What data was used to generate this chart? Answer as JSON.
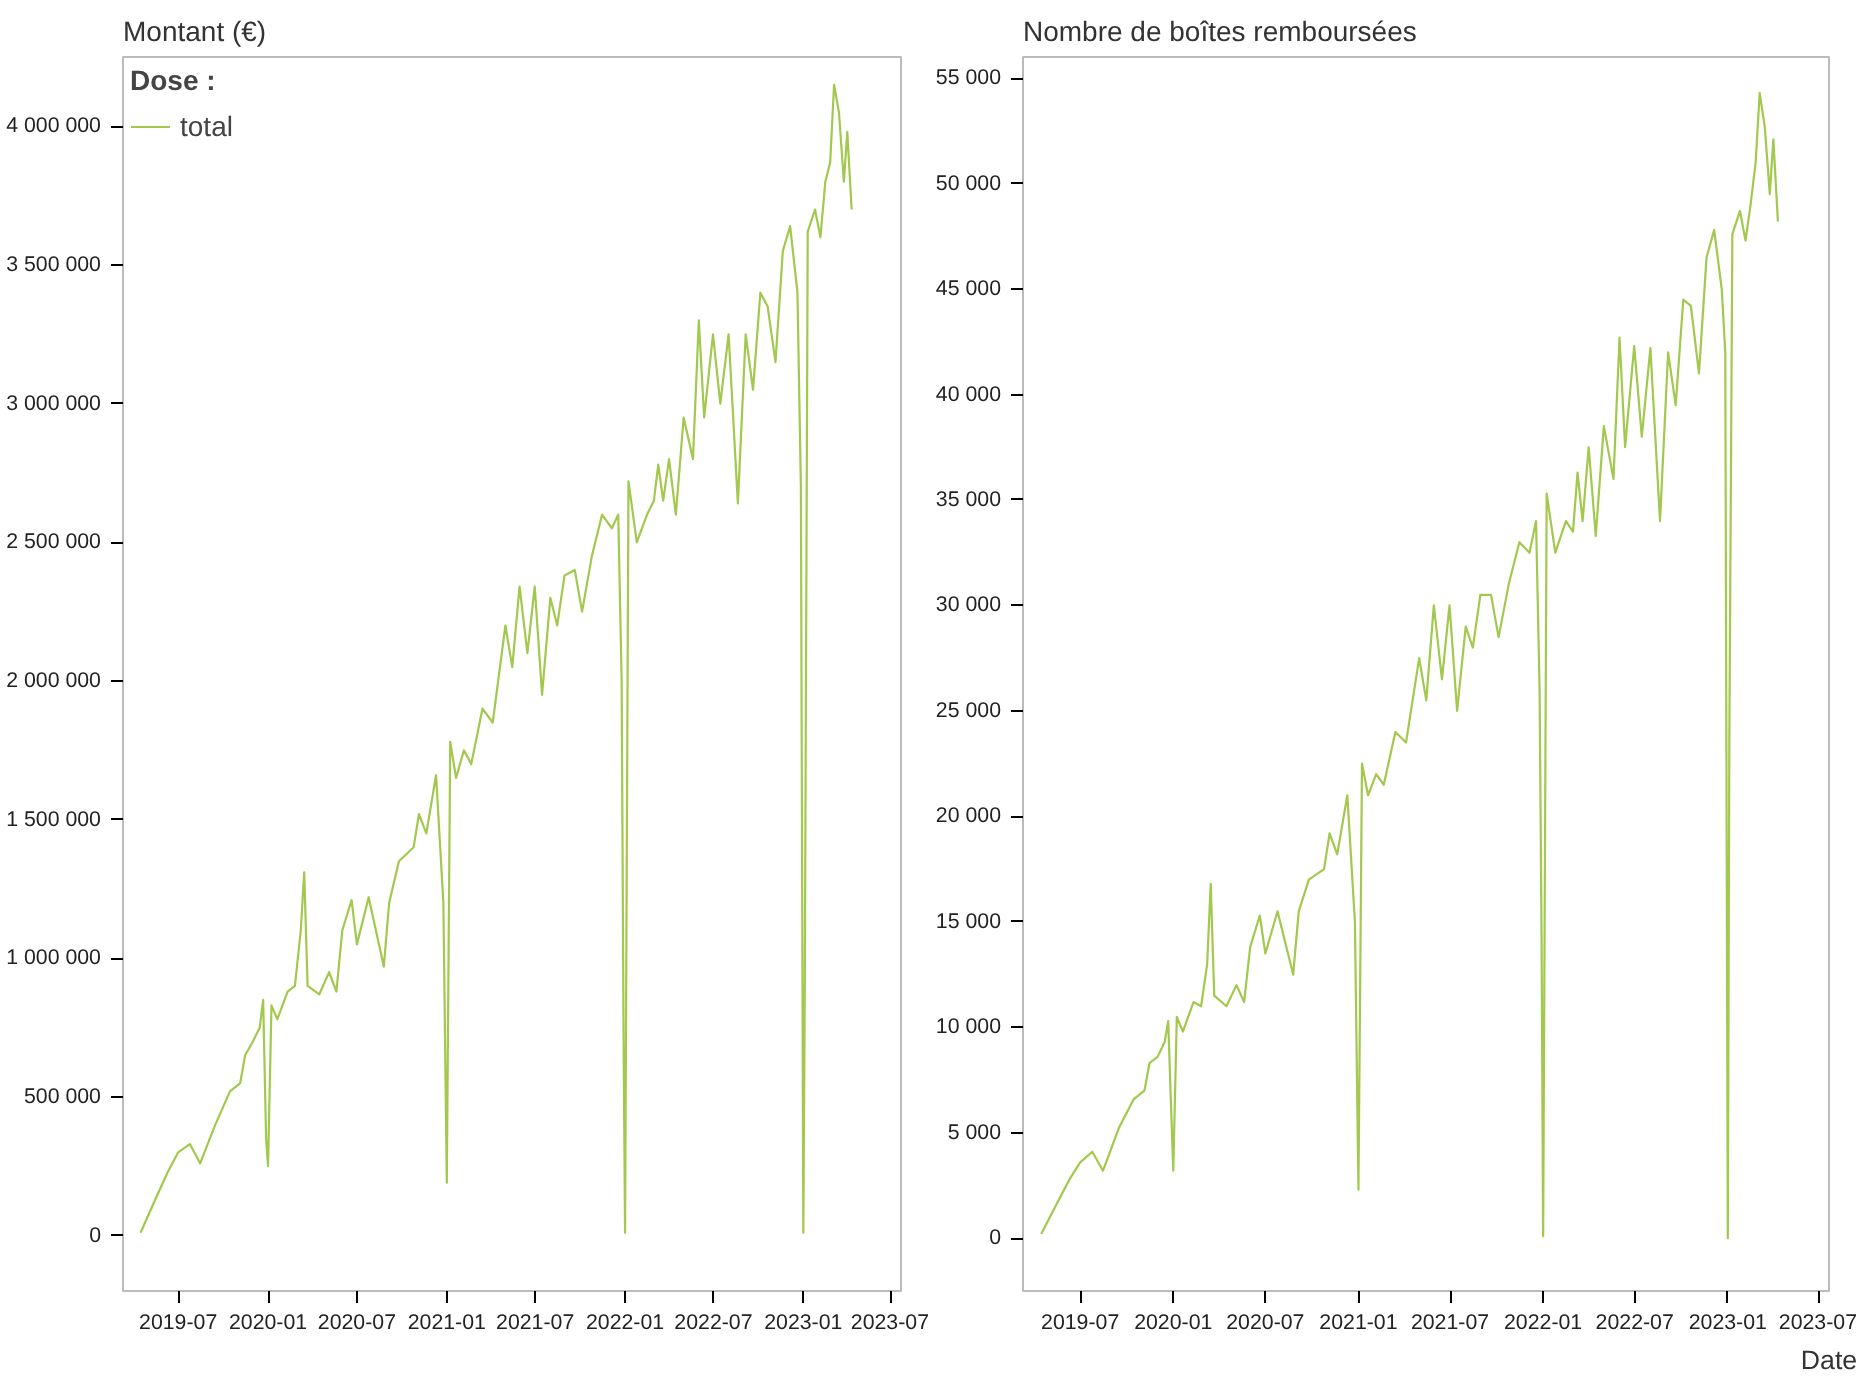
{
  "chart_data": [
    {
      "type": "line",
      "title": "Montant (€)",
      "legend_title": "Dose :",
      "legend": "top left",
      "grid": false,
      "marker": "none",
      "line_style": "solid",
      "x": [
        "2019-04-15",
        "2019-05-15",
        "2019-06-10",
        "2019-07-01",
        "2019-07-25",
        "2019-08-15",
        "2019-09-15",
        "2019-10-15",
        "2019-11-05",
        "2019-11-15",
        "2019-12-01",
        "2019-12-15",
        "2019-12-22",
        "2019-12-28",
        "2020-01-01",
        "2020-01-08",
        "2020-01-20",
        "2020-02-10",
        "2020-02-25",
        "2020-03-08",
        "2020-03-15",
        "2020-03-22",
        "2020-04-15",
        "2020-05-05",
        "2020-05-20",
        "2020-06-01",
        "2020-06-20",
        "2020-07-01",
        "2020-07-25",
        "2020-08-25",
        "2020-09-05",
        "2020-09-25",
        "2020-10-25",
        "2020-11-05",
        "2020-11-20",
        "2020-12-10",
        "2020-12-25",
        "2021-01-01",
        "2021-01-08",
        "2021-01-20",
        "2021-02-05",
        "2021-02-20",
        "2021-03-15",
        "2021-04-05",
        "2021-05-01",
        "2021-05-15",
        "2021-05-30",
        "2021-06-15",
        "2021-06-30",
        "2021-07-15",
        "2021-08-01",
        "2021-08-15",
        "2021-08-30",
        "2021-09-20",
        "2021-10-05",
        "2021-10-25",
        "2021-11-15",
        "2021-12-05",
        "2021-12-18",
        "2021-12-25",
        "2021-12-29",
        "2022-01-01",
        "2022-01-08",
        "2022-01-25",
        "2022-02-15",
        "2022-03-01",
        "2022-03-10",
        "2022-03-20",
        "2022-04-01",
        "2022-04-15",
        "2022-05-01",
        "2022-05-20",
        "2022-06-01",
        "2022-06-12",
        "2022-06-30",
        "2022-07-15",
        "2022-08-01",
        "2022-08-20",
        "2022-09-05",
        "2022-09-20",
        "2022-10-05",
        "2022-10-20",
        "2022-11-05",
        "2022-11-20",
        "2022-12-05",
        "2022-12-20",
        "2022-12-27",
        "2023-01-01",
        "2023-01-04",
        "2023-01-10",
        "2023-01-25",
        "2023-02-05",
        "2023-02-15",
        "2023-02-25",
        "2023-03-05",
        "2023-03-15",
        "2023-03-25",
        "2023-04-01",
        "2023-04-10"
      ],
      "series": [
        {
          "name": "total",
          "color": "#a3c84e",
          "values": [
            10000,
            130000,
            230000,
            300000,
            330000,
            260000,
            400000,
            520000,
            550000,
            650000,
            700000,
            750000,
            850000,
            350000,
            250000,
            830000,
            780000,
            880000,
            900000,
            1100000,
            1310000,
            900000,
            870000,
            950000,
            880000,
            1100000,
            1210000,
            1050000,
            1220000,
            970000,
            1200000,
            1350000,
            1400000,
            1520000,
            1450000,
            1660000,
            1200000,
            190000,
            1780000,
            1650000,
            1750000,
            1700000,
            1900000,
            1850000,
            2200000,
            2050000,
            2340000,
            2100000,
            2340000,
            1950000,
            2300000,
            2200000,
            2380000,
            2400000,
            2250000,
            2450000,
            2600000,
            2550000,
            2600000,
            2000000,
            700000,
            10000,
            2720000,
            2500000,
            2600000,
            2650000,
            2780000,
            2650000,
            2800000,
            2600000,
            2950000,
            2800000,
            3300000,
            2950000,
            3250000,
            3000000,
            3250000,
            2640000,
            3250000,
            3050000,
            3400000,
            3350000,
            3150000,
            3550000,
            3640000,
            3400000,
            2700000,
            10000,
            900000,
            3620000,
            3700000,
            3600000,
            3800000,
            3870000,
            4150000,
            4050000,
            3800000,
            3980000,
            3700000
          ]
        }
      ],
      "xlim": [
        "2019-03-10",
        "2023-07-20"
      ],
      "xticks": [
        "2019-07",
        "2020-01",
        "2020-07",
        "2021-01",
        "2021-07",
        "2022-01",
        "2022-07",
        "2023-01",
        "2023-07"
      ],
      "ylim": [
        -200000,
        4250000
      ],
      "yticks": [
        {
          "value": 0,
          "label": "0"
        },
        {
          "value": 500000,
          "label": "500 000"
        },
        {
          "value": 1000000,
          "label": "1 000 000"
        },
        {
          "value": 1500000,
          "label": "1 500 000"
        },
        {
          "value": 2000000,
          "label": "2 000 000"
        },
        {
          "value": 2500000,
          "label": "2 500 000"
        },
        {
          "value": 3000000,
          "label": "3 000 000"
        },
        {
          "value": 3500000,
          "label": "3 500 000"
        },
        {
          "value": 4000000,
          "label": "4 000 000"
        }
      ]
    },
    {
      "type": "line",
      "title": "Nombre de boîtes remboursées",
      "xlabel": "Date",
      "grid": false,
      "marker": "none",
      "line_style": "solid",
      "x": [
        "2019-04-15",
        "2019-05-15",
        "2019-06-10",
        "2019-07-01",
        "2019-07-25",
        "2019-08-15",
        "2019-09-15",
        "2019-10-15",
        "2019-11-05",
        "2019-11-15",
        "2019-12-01",
        "2019-12-15",
        "2019-12-22",
        "2019-12-28",
        "2020-01-01",
        "2020-01-08",
        "2020-01-20",
        "2020-02-10",
        "2020-02-25",
        "2020-03-08",
        "2020-03-15",
        "2020-03-22",
        "2020-04-15",
        "2020-05-05",
        "2020-05-20",
        "2020-06-01",
        "2020-06-20",
        "2020-07-01",
        "2020-07-25",
        "2020-08-25",
        "2020-09-05",
        "2020-09-25",
        "2020-10-25",
        "2020-11-05",
        "2020-11-20",
        "2020-12-10",
        "2020-12-25",
        "2021-01-01",
        "2021-01-08",
        "2021-01-20",
        "2021-02-05",
        "2021-02-20",
        "2021-03-15",
        "2021-04-05",
        "2021-05-01",
        "2021-05-15",
        "2021-05-30",
        "2021-06-15",
        "2021-06-30",
        "2021-07-15",
        "2021-08-01",
        "2021-08-15",
        "2021-08-30",
        "2021-09-20",
        "2021-10-05",
        "2021-10-25",
        "2021-11-15",
        "2021-12-05",
        "2021-12-18",
        "2021-12-25",
        "2021-12-29",
        "2022-01-01",
        "2022-01-08",
        "2022-01-25",
        "2022-02-15",
        "2022-03-01",
        "2022-03-10",
        "2022-03-20",
        "2022-04-01",
        "2022-04-15",
        "2022-05-01",
        "2022-05-20",
        "2022-06-01",
        "2022-06-12",
        "2022-06-30",
        "2022-07-15",
        "2022-08-01",
        "2022-08-20",
        "2022-09-05",
        "2022-09-20",
        "2022-10-05",
        "2022-10-20",
        "2022-11-05",
        "2022-11-20",
        "2022-12-05",
        "2022-12-20",
        "2022-12-27",
        "2023-01-01",
        "2023-01-04",
        "2023-01-10",
        "2023-01-25",
        "2023-02-05",
        "2023-02-15",
        "2023-02-25",
        "2023-03-05",
        "2023-03-15",
        "2023-03-25",
        "2023-04-01",
        "2023-04-10"
      ],
      "series": [
        {
          "color": "#a3c84e",
          "values": [
            200,
            1600,
            2800,
            3600,
            4100,
            3200,
            5200,
            6600,
            7000,
            8300,
            8600,
            9300,
            10300,
            6000,
            3200,
            10500,
            9800,
            11200,
            11000,
            13000,
            16800,
            11500,
            11000,
            12000,
            11200,
            13800,
            15300,
            13500,
            15500,
            12500,
            15500,
            17000,
            17500,
            19200,
            18200,
            21000,
            15000,
            2300,
            22500,
            21000,
            22000,
            21500,
            24000,
            23500,
            27500,
            25500,
            30000,
            26500,
            30000,
            25000,
            29000,
            28000,
            30500,
            30500,
            28500,
            31000,
            33000,
            32500,
            34000,
            26000,
            14000,
            100,
            35300,
            32500,
            34000,
            33500,
            36300,
            34000,
            37500,
            33300,
            38500,
            36000,
            42700,
            37500,
            42300,
            38000,
            42200,
            34000,
            42000,
            39500,
            44500,
            44200,
            41000,
            46500,
            47800,
            45000,
            42000,
            0,
            23500,
            47600,
            48700,
            47300,
            49000,
            51000,
            54300,
            52700,
            49500,
            52100,
            48200
          ]
        }
      ],
      "xlim": [
        "2019-03-10",
        "2023-07-20"
      ],
      "xticks": [
        "2019-07",
        "2020-01",
        "2020-07",
        "2021-01",
        "2021-07",
        "2022-01",
        "2022-07",
        "2023-01",
        "2023-07"
      ],
      "ylim": [
        -2500,
        56000
      ],
      "yticks": [
        {
          "value": 0,
          "label": "0"
        },
        {
          "value": 5000,
          "label": "5 000"
        },
        {
          "value": 10000,
          "label": "10 000"
        },
        {
          "value": 15000,
          "label": "15 000"
        },
        {
          "value": 20000,
          "label": "20 000"
        },
        {
          "value": 25000,
          "label": "25 000"
        },
        {
          "value": 30000,
          "label": "30 000"
        },
        {
          "value": 35000,
          "label": "35 000"
        },
        {
          "value": 40000,
          "label": "40 000"
        },
        {
          "value": 45000,
          "label": "45 000"
        },
        {
          "value": 50000,
          "label": "50 000"
        },
        {
          "value": 55000,
          "label": "55 000"
        }
      ]
    }
  ]
}
